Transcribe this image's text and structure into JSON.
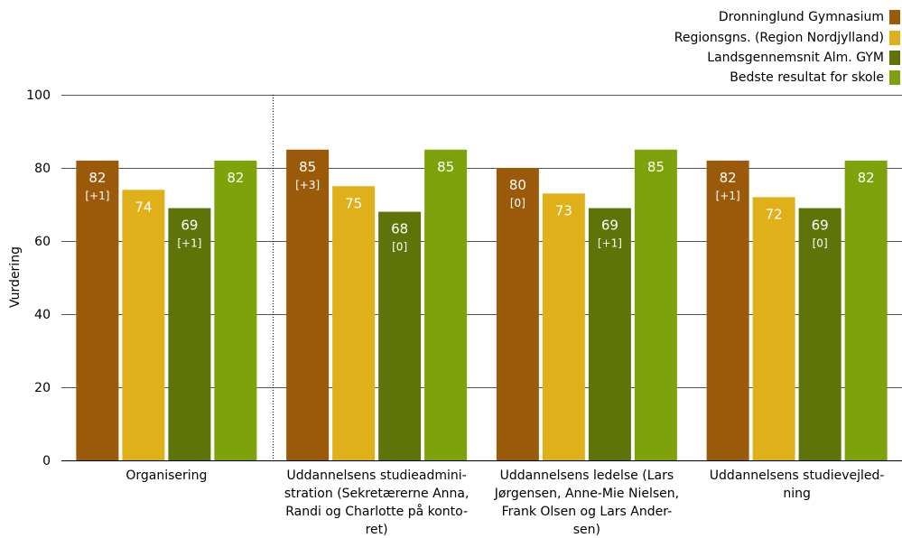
{
  "chart_data": {
    "type": "bar",
    "ylabel": "Vurdering",
    "ylim": [
      0,
      100
    ],
    "yticks": [
      0,
      20,
      40,
      60,
      80,
      100
    ],
    "grid": true,
    "legend_position": "top-right",
    "categories": [
      [
        "Organisering"
      ],
      [
        "Uddannelsens studieadmini-",
        "stration (Sekretærerne Anna,",
        "Randi og Charlotte på konto-",
        "ret)"
      ],
      [
        "Uddannelsens ledelse (Lars",
        "Jørgensen, Anne-Mie Nielsen,",
        "Frank Olsen og Lars Ander-",
        "sen)"
      ],
      [
        "Uddannelsens studievejled-",
        "ning"
      ]
    ],
    "series": [
      {
        "name": "Dronninglund Gymnasium",
        "color": "#9a5a0a",
        "values": [
          82,
          85,
          80,
          82
        ],
        "labels": [
          "82",
          "85",
          "80",
          "82"
        ],
        "sublabels": [
          "[+1]",
          "[+3]",
          "[0]",
          "[+1]"
        ]
      },
      {
        "name": "Regionsgns. (Region Nordjylland)",
        "color": "#e0b01a",
        "values": [
          74,
          75,
          73,
          72
        ],
        "labels": [
          "74",
          "75",
          "73",
          "72"
        ],
        "sublabels": [
          "",
          "",
          "",
          ""
        ]
      },
      {
        "name": "Landsgennemsnit Alm. GYM",
        "color": "#5e7308",
        "values": [
          69,
          68,
          69,
          69
        ],
        "labels": [
          "69",
          "68",
          "69",
          "69"
        ],
        "sublabels": [
          "[+1]",
          "[0]",
          "[+1]",
          "[0]"
        ]
      },
      {
        "name": "Bedste resultat for skole",
        "color": "#7ea20a",
        "values": [
          82,
          85,
          85,
          82
        ],
        "labels": [
          "82",
          "85",
          "85",
          "82"
        ],
        "sublabels": [
          "",
          "",
          "",
          ""
        ]
      }
    ]
  }
}
